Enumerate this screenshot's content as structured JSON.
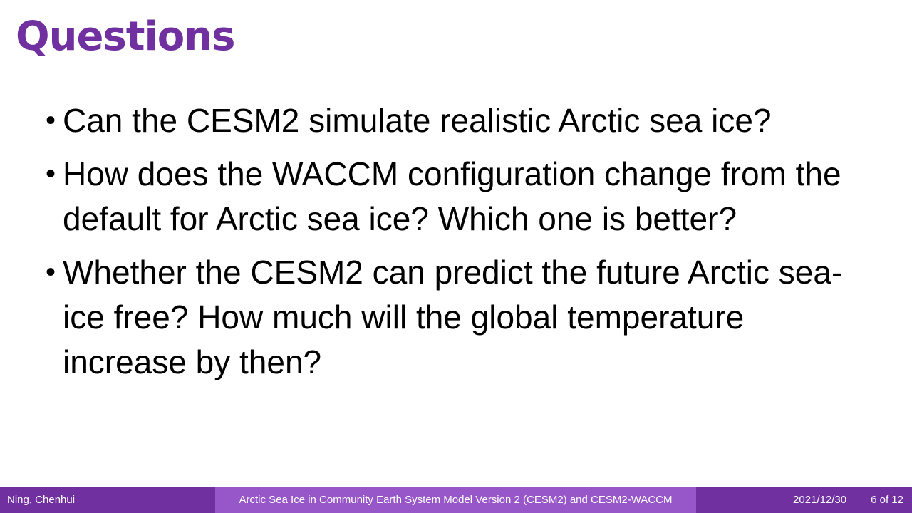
{
  "slide": {
    "title": "Questions",
    "bullets": [
      {
        "symbol": "•",
        "text": "Can the CESM2 simulate realistic Arctic sea ice?"
      },
      {
        "symbol": "•",
        "text": "How does the WACCM configuration change from the default for Arctic sea ice? Which one is better?"
      },
      {
        "symbol": "•",
        "text": "Whether the CESM2 can predict the future Arctic sea-ice free? How much will the global temperature increase by then?"
      }
    ]
  },
  "footer": {
    "author": "Ning, Chenhui",
    "presentation_title": "Arctic Sea Ice in Community Earth System Model Version 2 (CESM2) and CESM2-WACCM",
    "date": "2021/12/30",
    "page": "6 of 12"
  },
  "colors": {
    "title": "#7030a0",
    "footer_dark": "#7030a0",
    "footer_light": "#9757c8",
    "text": "#000000"
  }
}
